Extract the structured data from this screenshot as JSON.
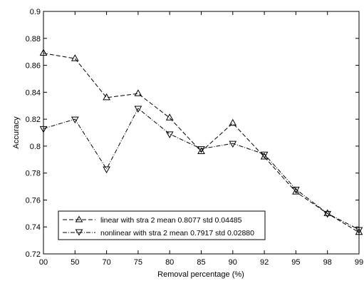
{
  "chart_data": {
    "type": "line",
    "title": "",
    "xlabel": "Removal percentage (%)",
    "ylabel": "Accuracy",
    "categories": [
      "00",
      "50",
      "70",
      "75",
      "80",
      "85",
      "90",
      "92",
      "95",
      "98",
      "99"
    ],
    "ylim": [
      0.72,
      0.9
    ],
    "yticks": [
      "0.72",
      "0.74",
      "0.76",
      "0.78",
      "0.8",
      "0.82",
      "0.84",
      "0.86",
      "0.88",
      "0.9"
    ],
    "grid": false,
    "legend_position": "bottom-left",
    "series": [
      {
        "name": "linear with stra 2 mean 0.8077 std 0.04485",
        "marker": "triangle-up",
        "line_style": "dashed",
        "color": "#000000",
        "values": [
          0.869,
          0.865,
          0.836,
          0.839,
          0.821,
          0.796,
          0.817,
          0.792,
          0.766,
          0.75,
          0.736
        ]
      },
      {
        "name": "nonlinear with stra 2 mean 0.7917 std 0.02880",
        "marker": "triangle-down",
        "line_style": "dash-dot",
        "color": "#000000",
        "values": [
          0.813,
          0.82,
          0.783,
          0.828,
          0.809,
          0.798,
          0.802,
          0.794,
          0.768,
          0.75,
          0.738
        ]
      }
    ]
  }
}
